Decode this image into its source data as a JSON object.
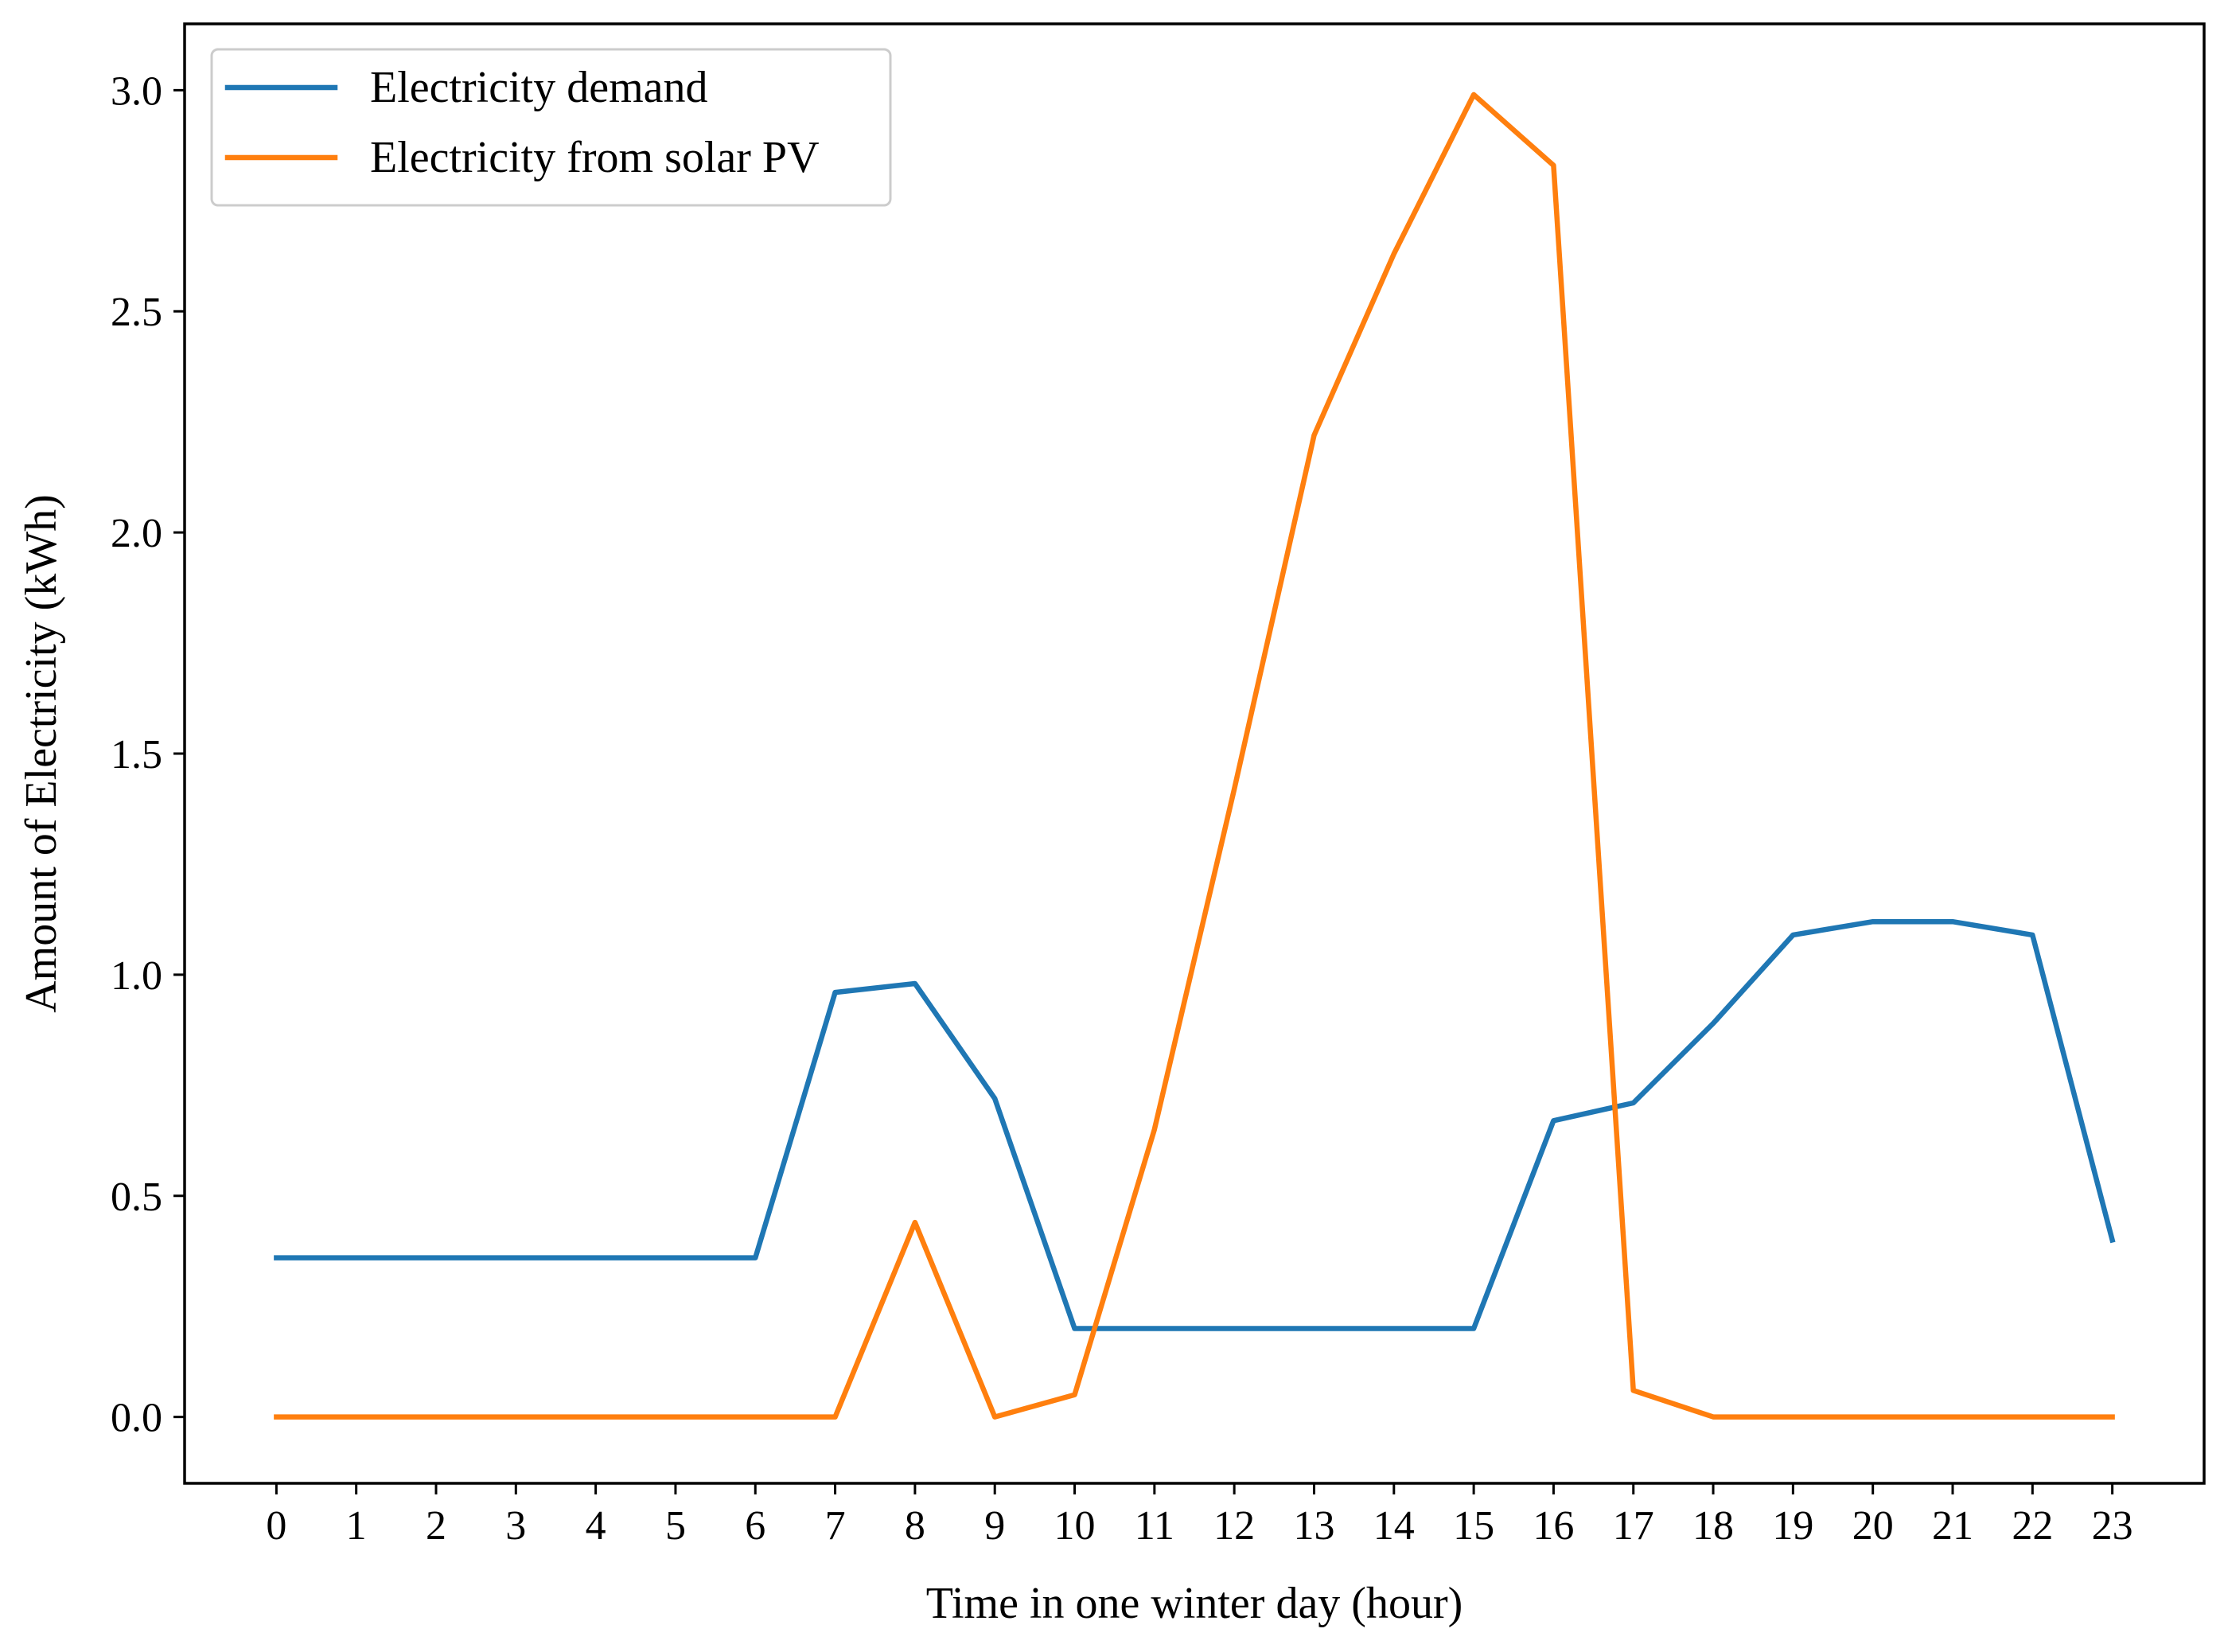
{
  "chart_data": {
    "type": "line",
    "title": "",
    "xlabel": "Time in one winter day (hour)",
    "ylabel": "Amount of Electricity (kWh)",
    "x": [
      0,
      1,
      2,
      3,
      4,
      5,
      6,
      7,
      8,
      9,
      10,
      11,
      12,
      13,
      14,
      15,
      16,
      17,
      18,
      19,
      20,
      21,
      22,
      23
    ],
    "x_tick_labels": [
      "0",
      "1",
      "2",
      "3",
      "4",
      "5",
      "6",
      "7",
      "8",
      "9",
      "10",
      "11",
      "12",
      "13",
      "14",
      "15",
      "16",
      "17",
      "18",
      "19",
      "20",
      "21",
      "22",
      "23"
    ],
    "xlim": [
      -1.15,
      24.15
    ],
    "ylim": [
      -0.15,
      3.15
    ],
    "y_ticks": [
      0.0,
      0.5,
      1.0,
      1.5,
      2.0,
      2.5,
      3.0
    ],
    "y_tick_labels": [
      "0.0",
      "0.5",
      "1.0",
      "1.5",
      "2.0",
      "2.5",
      "3.0"
    ],
    "grid": false,
    "legend_position": "top-left",
    "series": [
      {
        "name": "Electricity demand",
        "color": "#1f77b4",
        "values": [
          0.36,
          0.36,
          0.36,
          0.36,
          0.36,
          0.36,
          0.36,
          0.96,
          0.98,
          0.72,
          0.2,
          0.2,
          0.2,
          0.2,
          0.2,
          0.2,
          0.67,
          0.71,
          0.89,
          1.09,
          1.12,
          1.12,
          1.09,
          0.4
        ]
      },
      {
        "name": "Electricity from solar PV",
        "color": "#ff7f0e",
        "values": [
          0,
          0,
          0,
          0,
          0,
          0,
          0,
          0,
          0.44,
          0,
          0.05,
          0.65,
          1.42,
          2.22,
          2.63,
          2.99,
          2.83,
          0.06,
          0,
          0,
          0,
          0,
          0,
          0
        ]
      }
    ]
  }
}
